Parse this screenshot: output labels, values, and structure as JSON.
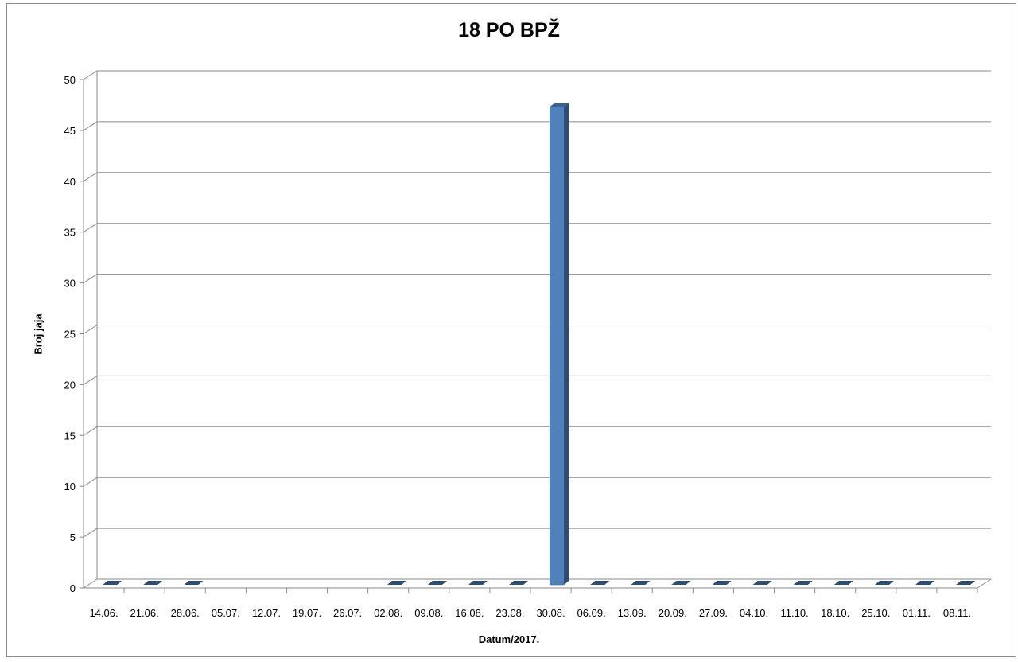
{
  "chart_data": {
    "type": "bar",
    "title": "18 PO BPŽ",
    "xlabel": "Datum/2017.",
    "ylabel": "Broj jaja",
    "ylim": [
      0,
      50
    ],
    "yticks": [
      0,
      5,
      10,
      15,
      20,
      25,
      30,
      35,
      40,
      45,
      50
    ],
    "grid": true,
    "legend": "none",
    "categories": [
      "14.06.",
      "21.06.",
      "28.06.",
      "05.07.",
      "12.07.",
      "19.07.",
      "26.07.",
      "02.08.",
      "09.08.",
      "16.08.",
      "23.08.",
      "30.08.",
      "06.09.",
      "13.09.",
      "20.09.",
      "27.09.",
      "04.10.",
      "11.10.",
      "18.10.",
      "25.10.",
      "01.11.",
      "08.11."
    ],
    "values": [
      0,
      0,
      0,
      null,
      null,
      null,
      null,
      0,
      0,
      0,
      0,
      47,
      0,
      0,
      0,
      0,
      0,
      0,
      0,
      0,
      0,
      0
    ],
    "bar_color": "#4f81bd",
    "bar_side_color": "#2c4d75",
    "bar_top_color": "#3a6496"
  }
}
